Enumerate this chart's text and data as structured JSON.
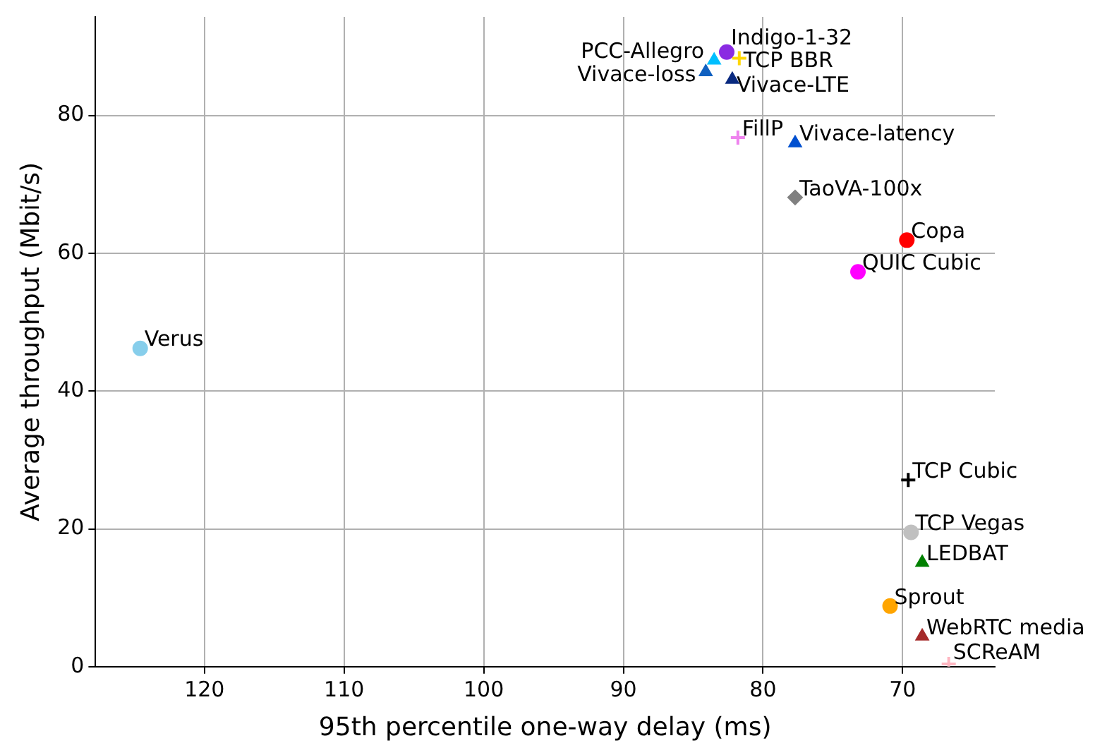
{
  "chart_data": {
    "type": "scatter",
    "xlabel": "95th percentile one-way delay (ms)",
    "ylabel": "Average throughput (Mbit/s)",
    "xlim": [
      127.8,
      63.4
    ],
    "xticks": [
      120,
      110,
      100,
      90,
      80,
      70
    ],
    "ylim": [
      0,
      94.3
    ],
    "yticks": [
      0,
      20,
      40,
      60,
      80
    ],
    "grid": true,
    "legend": false,
    "series": [
      {
        "name": "Verus",
        "color": "#87ceeb",
        "marker": "circle",
        "x": [
          124.6
        ],
        "values": [
          46.2
        ]
      },
      {
        "name": "Copa",
        "color": "#ff0000",
        "marker": "circle",
        "x": [
          69.7
        ],
        "values": [
          61.9
        ]
      },
      {
        "name": "QUIC Cubic",
        "color": "#ff00ff",
        "marker": "circle",
        "x": [
          73.2
        ],
        "values": [
          57.3
        ]
      },
      {
        "name": "TaoVA-100x",
        "color": "#808080",
        "marker": "diamond",
        "x": [
          77.7
        ],
        "values": [
          68.1
        ]
      },
      {
        "name": "Vivace-latency",
        "color": "#0050d0",
        "marker": "triangle",
        "x": [
          77.7
        ],
        "values": [
          76.0
        ]
      },
      {
        "name": "FillP",
        "color": "#ee82ee",
        "marker": "cross",
        "x": [
          81.8
        ],
        "values": [
          76.8
        ]
      },
      {
        "name": "Indigo-1-32",
        "color": "#8a2be2",
        "marker": "circle",
        "x": [
          82.6
        ],
        "values": [
          89.2
        ]
      },
      {
        "name": "TCP BBR",
        "color": "#ffd700",
        "marker": "cross",
        "x": [
          81.7
        ],
        "values": [
          88.3
        ]
      },
      {
        "name": "PCC-Allegro",
        "color": "#00bfff",
        "marker": "triangle",
        "x": [
          83.5
        ],
        "values": [
          88.0
        ]
      },
      {
        "name": "Vivace-loss",
        "color": "#1060c0",
        "marker": "triangle",
        "x": [
          84.1
        ],
        "values": [
          86.3
        ]
      },
      {
        "name": "Vivace-LTE",
        "color": "#0a2a80",
        "marker": "triangle",
        "x": [
          82.2
        ],
        "values": [
          85.2
        ]
      },
      {
        "name": "TCP Cubic",
        "color": "#000000",
        "marker": "cross",
        "x": [
          69.6
        ],
        "values": [
          27.1
        ]
      },
      {
        "name": "TCP Vegas",
        "color": "#c0c0c0",
        "marker": "circle",
        "x": [
          69.4
        ],
        "values": [
          19.5
        ]
      },
      {
        "name": "LEDBAT",
        "color": "#008000",
        "marker": "triangle",
        "x": [
          68.6
        ],
        "values": [
          15.1
        ]
      },
      {
        "name": "Sprout",
        "color": "#ffa500",
        "marker": "circle",
        "x": [
          70.9
        ],
        "values": [
          8.8
        ]
      },
      {
        "name": "WebRTC media",
        "color": "#a52a2a",
        "marker": "triangle",
        "x": [
          68.6
        ],
        "values": [
          4.4
        ]
      },
      {
        "name": "SCReAM",
        "color": "#ffb6c1",
        "marker": "cross",
        "x": [
          66.7
        ],
        "values": [
          0.4
        ]
      }
    ]
  }
}
